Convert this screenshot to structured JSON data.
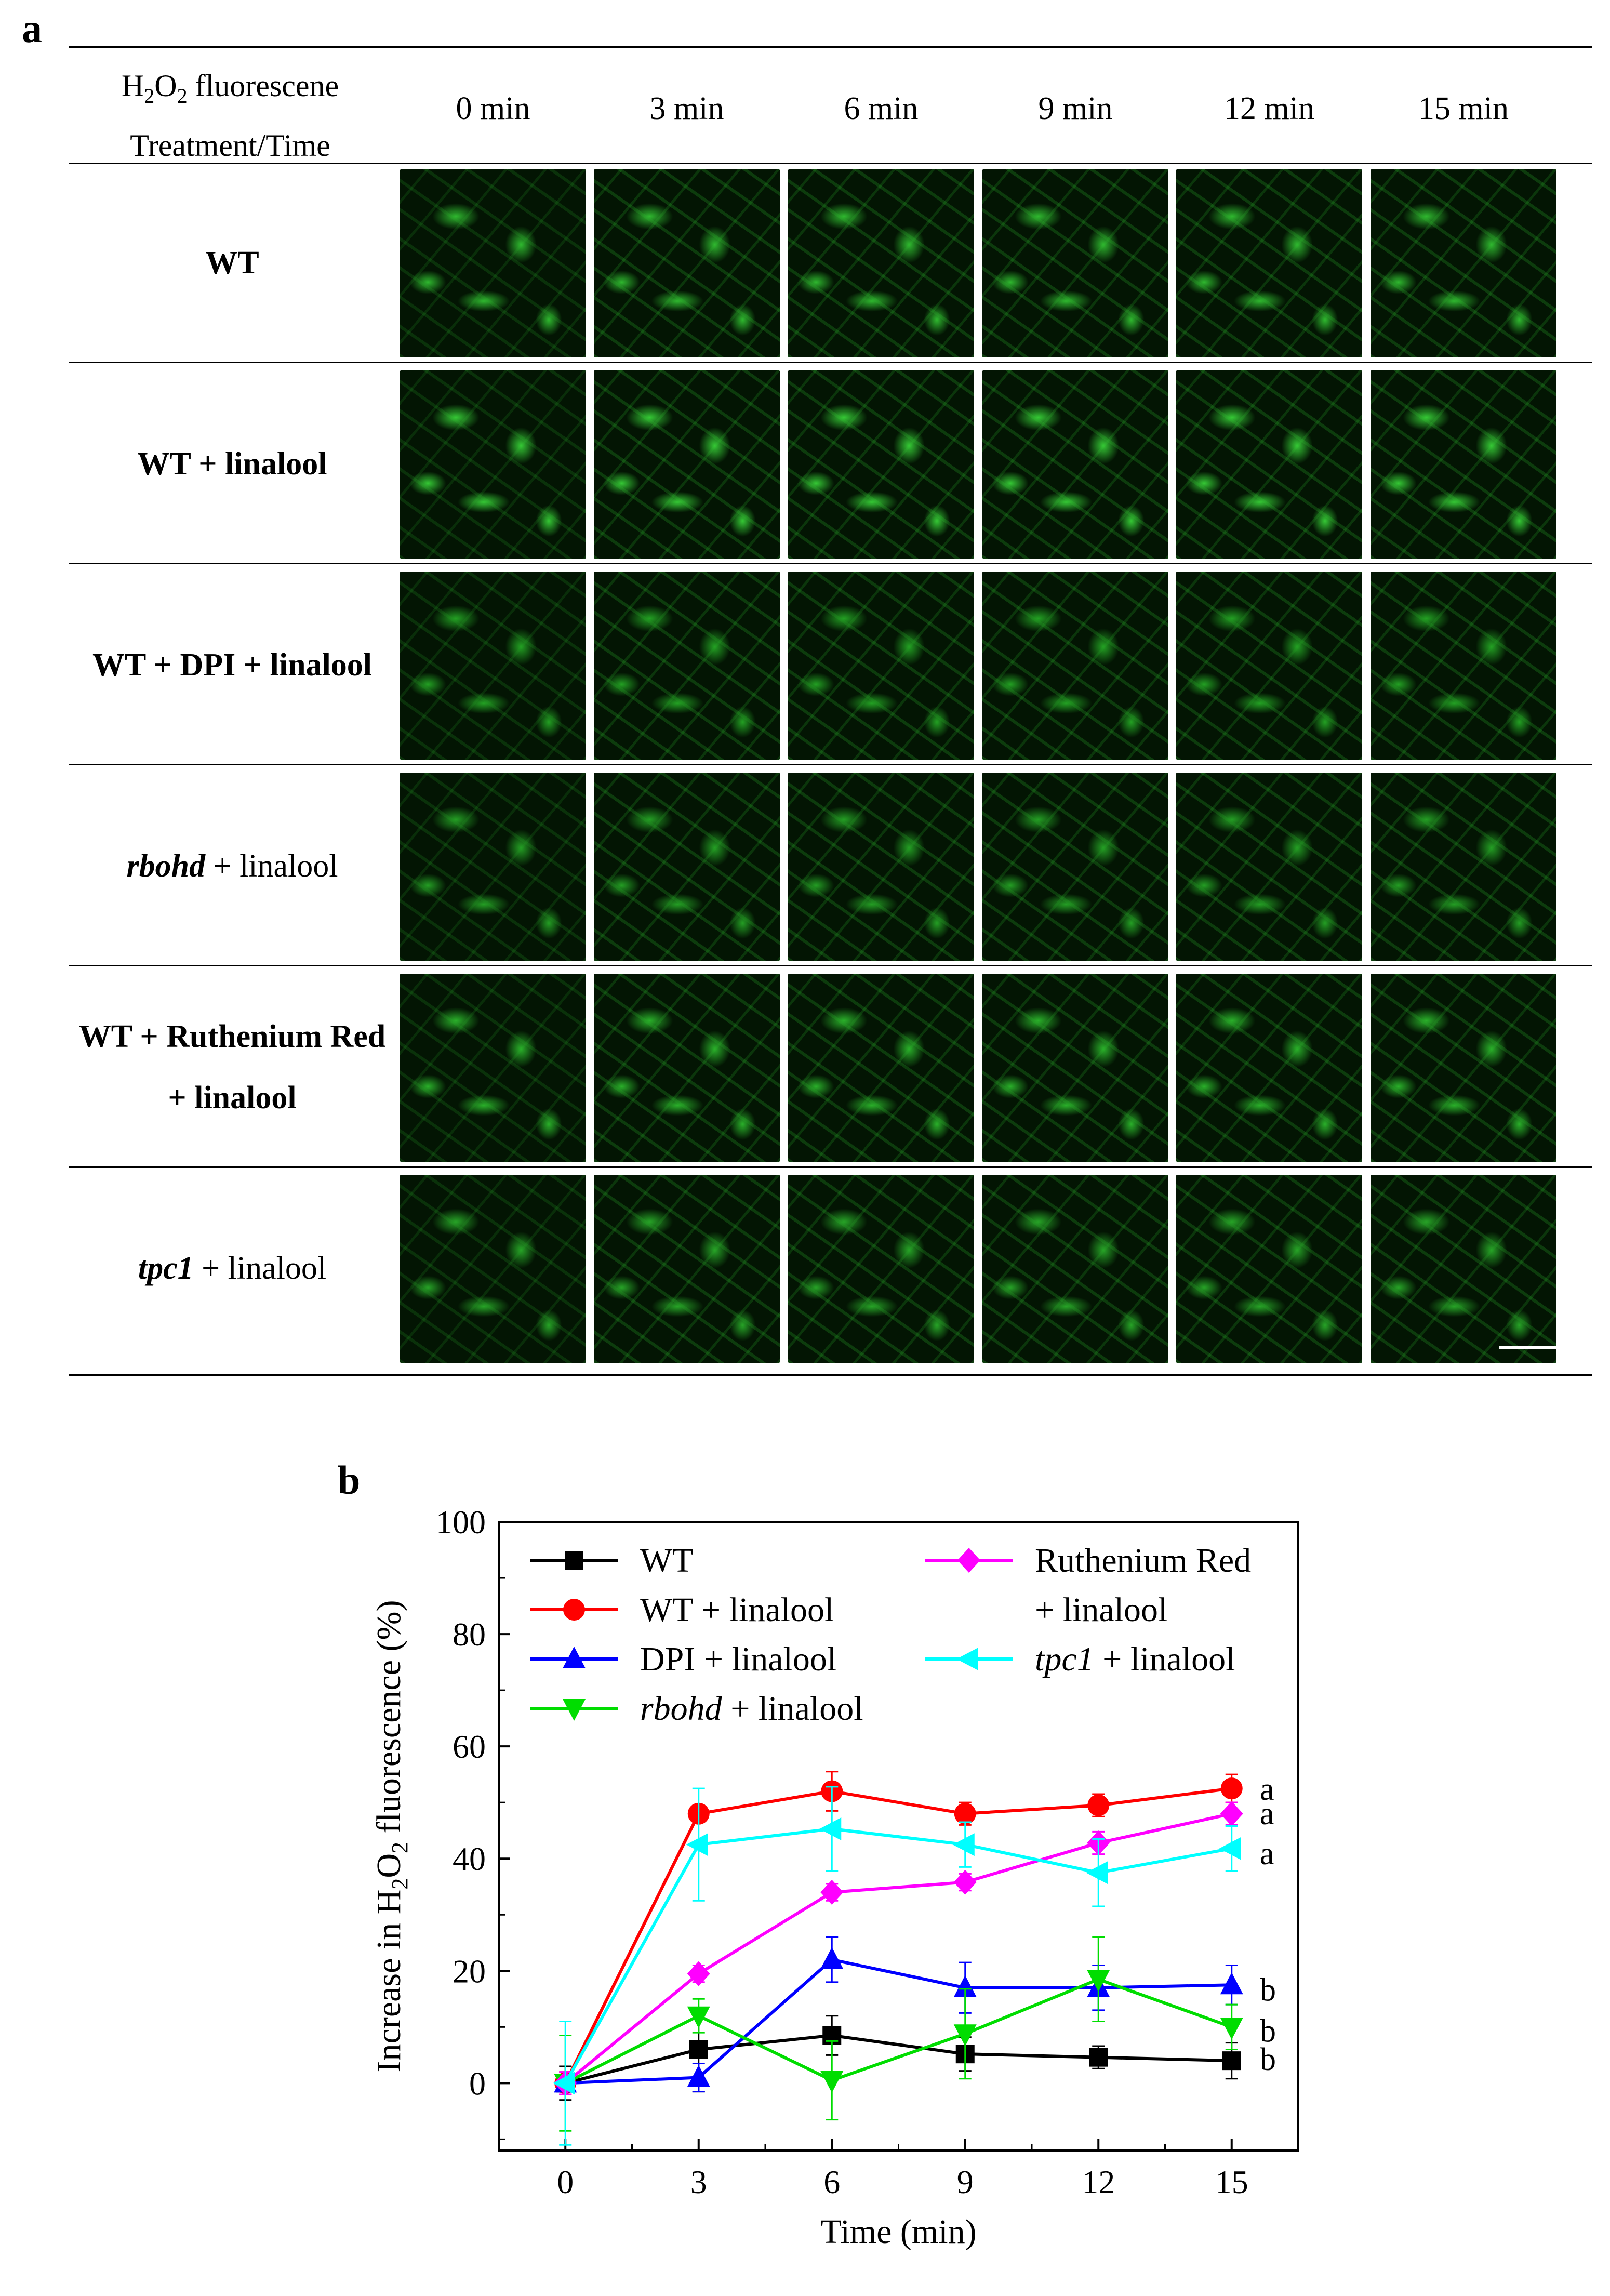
{
  "panel_a": {
    "letter": "a",
    "header": {
      "line1_prefix": "H",
      "line1_sub1": "2",
      "line1_mid": "O",
      "line1_sub2": "2",
      "line1_suffix": " fluorescene",
      "line2": "Treatment/Time"
    },
    "times": [
      "0 min",
      "3 min",
      "6 min",
      "9 min",
      "12 min",
      "15 min"
    ],
    "rows": [
      {
        "label_pre": "WT",
        "label_ital": "",
        "label_post": "",
        "label2": "",
        "tint": "#2fb82f"
      },
      {
        "label_pre": "WT + linalool",
        "label_ital": "",
        "label_post": "",
        "label2": "",
        "tint": "#35c835"
      },
      {
        "label_pre": "WT + DPI + linalool",
        "label_ital": "",
        "label_post": "",
        "label2": "",
        "tint": "#23a023"
      },
      {
        "label_pre": "",
        "label_ital": "rbohd",
        "label_post": " + linalool",
        "label2": "",
        "tint": "#249e24"
      },
      {
        "label_pre": "WT + Ruthenium Red",
        "label_ital": "",
        "label_post": "",
        "label2": "+ linalool",
        "tint": "#2ab02a"
      },
      {
        "label_pre": "",
        "label_ital": "tpc1",
        "label_post": " + linalool",
        "label2": "",
        "tint": "#27a427"
      }
    ]
  },
  "panel_b": {
    "letter": "b",
    "chart_data": {
      "type": "line",
      "xlabel": "Time (min)",
      "ylabel_pre": "Increase in H",
      "ylabel_sub1": "2",
      "ylabel_mid": "O",
      "ylabel_sub2": "2",
      "ylabel_post": " fluorescence (%)",
      "x": [
        0,
        3,
        6,
        9,
        12,
        15
      ],
      "xticks": [
        0,
        3,
        6,
        9,
        12,
        15
      ],
      "yticks": [
        0,
        20,
        40,
        60,
        80,
        100
      ],
      "xlim": [
        -1.5,
        16.5
      ],
      "ylim": [
        -12,
        100
      ],
      "legend_position": "top",
      "series": [
        {
          "legend": "WT",
          "legend_ital": "",
          "legend_post": "",
          "legend2": "",
          "color": "#000000",
          "marker": "square",
          "values": [
            0,
            6,
            8.5,
            5.2,
            4.6,
            4.0
          ],
          "err": [
            3,
            7.5,
            3.5,
            3,
            2,
            3.2
          ],
          "letter": "b"
        },
        {
          "legend": "WT + linalool",
          "legend_ital": "",
          "legend_post": "",
          "legend2": "",
          "color": "#ff0000",
          "marker": "circle",
          "values": [
            0,
            48,
            52,
            48,
            49.5,
            52.5
          ],
          "err": [
            2,
            1.5,
            3.5,
            2,
            2,
            2.5
          ],
          "letter": "a"
        },
        {
          "legend": "DPI + linalool",
          "legend_ital": "",
          "legend_post": "",
          "legend2": "",
          "color": "#0000ff",
          "marker": "triangle-up",
          "values": [
            0,
            1,
            22,
            17,
            17,
            17.5
          ],
          "err": [
            1.5,
            2.5,
            4,
            4.5,
            4,
            3.5
          ],
          "letter": "b"
        },
        {
          "legend": "",
          "legend_ital": "rbohd",
          "legend_post": " + linalool",
          "legend2": "",
          "color": "#00dd00",
          "marker": "triangle-down",
          "values": [
            0,
            12,
            0.5,
            8.8,
            18.5,
            10
          ],
          "err": [
            8.5,
            3,
            7,
            8,
            7.5,
            4
          ],
          "letter": "b"
        },
        {
          "legend": "Ruthenium Red",
          "legend_ital": "",
          "legend_post": "",
          "legend2": "+ linalool",
          "color": "#ff00ff",
          "marker": "diamond",
          "values": [
            0,
            19.5,
            34,
            35.8,
            42.8,
            48
          ],
          "err": [
            2,
            1.5,
            1.5,
            1.5,
            2,
            2
          ],
          "letter": "a"
        },
        {
          "legend": "",
          "legend_ital": "tpc1",
          "legend_post": " + linalool",
          "legend2": "",
          "color": "#00ffff",
          "marker": "triangle-left",
          "values": [
            0,
            42.5,
            45.3,
            42.5,
            37.5,
            41.8
          ],
          "err": [
            11,
            10,
            7.5,
            4,
            6,
            4
          ],
          "letter": "a"
        }
      ]
    }
  }
}
